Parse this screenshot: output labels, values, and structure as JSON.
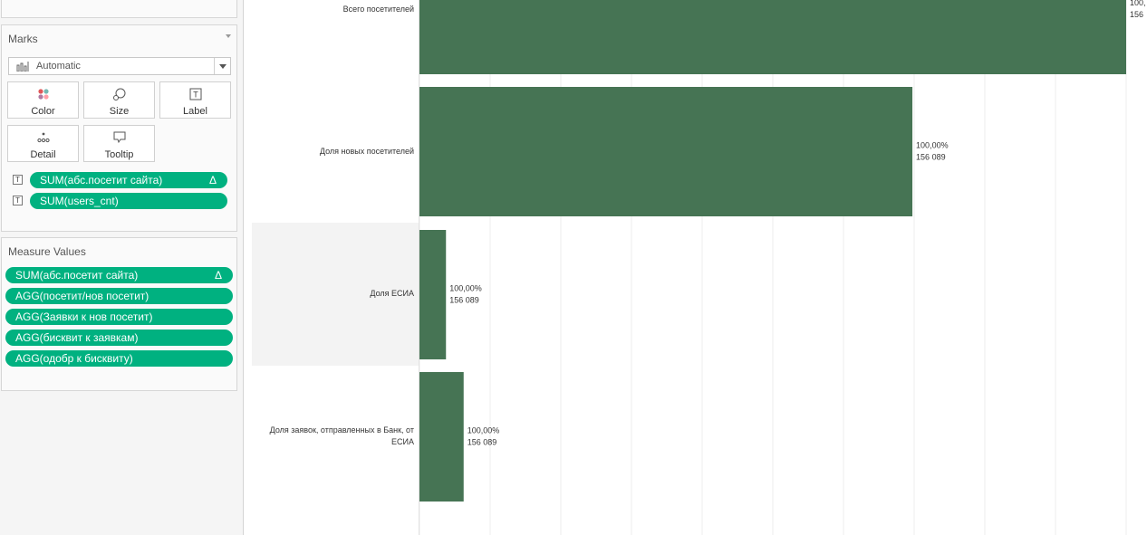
{
  "marks": {
    "title": "Marks",
    "mark_type": "Automatic",
    "buttons": [
      {
        "label": "Color",
        "icon": "color-dots-icon"
      },
      {
        "label": "Size",
        "icon": "size-icon"
      },
      {
        "label": "Label",
        "icon": "label-icon"
      },
      {
        "label": "Detail",
        "icon": "detail-icon"
      },
      {
        "label": "Tooltip",
        "icon": "tooltip-icon"
      }
    ],
    "pills": [
      {
        "type": "T",
        "label": "SUM(абс.посетит сайта)",
        "delta": "Δ"
      },
      {
        "type": "T",
        "label": "SUM(users_cnt)"
      }
    ]
  },
  "measure_values": {
    "title": "Measure Values",
    "pills": [
      {
        "label": "SUM(абс.посетит сайта)",
        "delta": "Δ"
      },
      {
        "label": "AGG(посетит/нов посетит)"
      },
      {
        "label": "AGG(Заявки к нов посетит)"
      },
      {
        "label": "AGG(бисквит к заявкам)"
      },
      {
        "label": "AGG(одобр к бисквиту)"
      }
    ]
  },
  "colors": {
    "bar": "#467454",
    "pill": "#00b180",
    "row_highlight": "#f3f3f3"
  },
  "chart_data": {
    "type": "bar",
    "orientation": "horizontal",
    "categories": [
      "Всего посетителей",
      "Доля новых посетителей",
      "Доля ЕСИА",
      "Доля заявок, отправленных в Банк, от ЕСИА"
    ],
    "values": [
      1.0,
      0.6975,
      0.0375,
      0.0625
    ],
    "labels": [
      [
        "100,",
        "156"
      ],
      [
        "100,00%",
        "156 089"
      ],
      [
        "100,00%",
        "156 089"
      ],
      [
        "100,00%",
        "156 089"
      ]
    ],
    "xlim": [
      0,
      1.0
    ],
    "grid": true
  }
}
